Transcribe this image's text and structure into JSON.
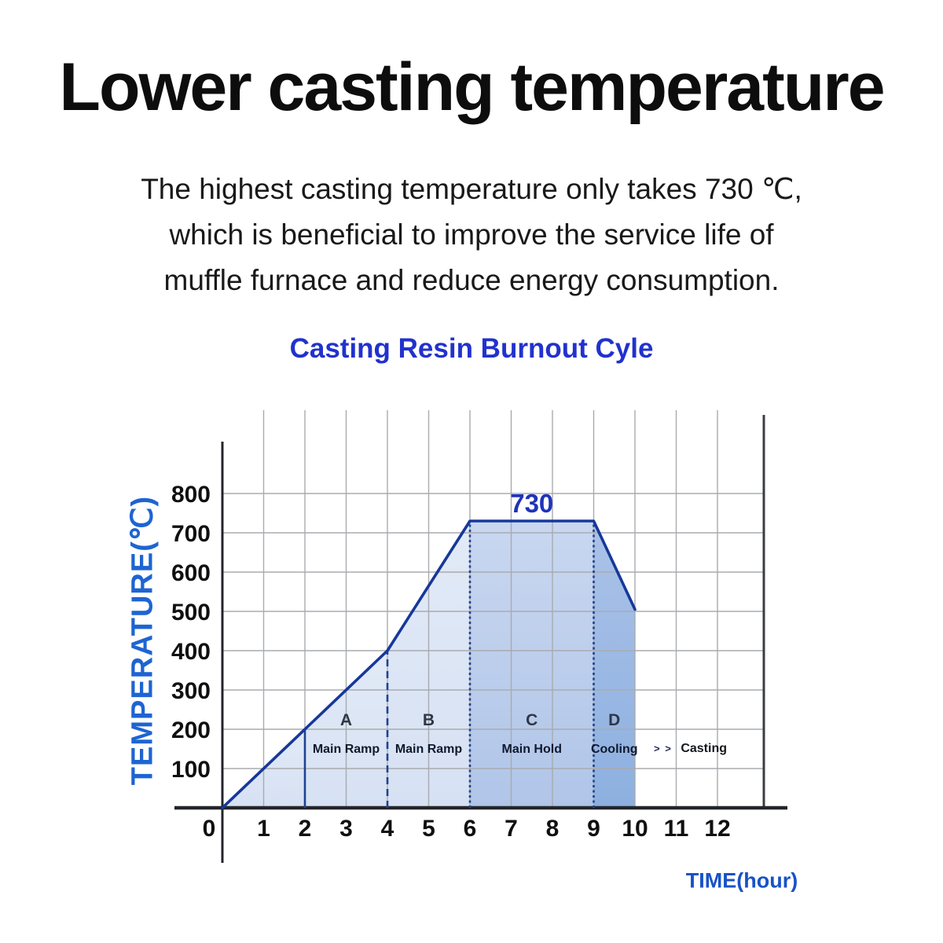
{
  "page": {
    "heading": "Lower casting temperature",
    "paragraph_lines": [
      "The highest casting temperature only takes 730 ℃,",
      "which is beneficial to improve the service life of",
      "muffle furnace and reduce energy consumption."
    ]
  },
  "chart_data": {
    "type": "area",
    "title": "Casting Resin Burnout Cyle",
    "xlabel": "TIME(hour)",
    "ylabel": "TEMPERATURE(℃)",
    "x_ticks": [
      0,
      1,
      2,
      3,
      4,
      5,
      6,
      7,
      8,
      9,
      10,
      11,
      12
    ],
    "y_ticks": [
      100,
      200,
      300,
      400,
      500,
      600,
      700,
      800
    ],
    "xlim": [
      0,
      13
    ],
    "ylim": [
      0,
      1030
    ],
    "grid": true,
    "profile_points": [
      [
        0,
        0
      ],
      [
        2,
        200
      ],
      [
        4,
        400
      ],
      [
        6,
        730
      ],
      [
        9,
        730
      ],
      [
        10,
        505
      ]
    ],
    "peak_label": {
      "text": "730",
      "x": 7.5,
      "y": 730
    },
    "segments": [
      {
        "id": "pre",
        "from": 0,
        "to": 2,
        "label": "",
        "sublabel": "",
        "fill_top": "#e2eaf7",
        "fill_bottom": "#d6e1f3"
      },
      {
        "id": "A",
        "from": 2,
        "to": 4,
        "label": "A",
        "sublabel": "Main Ramp",
        "fill_top": "#e2eaf7",
        "fill_bottom": "#d6e1f3"
      },
      {
        "id": "B",
        "from": 4,
        "to": 6,
        "label": "B",
        "sublabel": "Main Ramp",
        "fill_top": "#e2eaf7",
        "fill_bottom": "#d6e1f3"
      },
      {
        "id": "C",
        "from": 6,
        "to": 9,
        "label": "C",
        "sublabel": "Main Hold",
        "fill_top": "#c9d7f0",
        "fill_bottom": "#b0c5e8"
      },
      {
        "id": "D",
        "from": 9,
        "to": 10,
        "label": "D",
        "sublabel": "Cooling",
        "fill_top": "#abc2e8",
        "fill_bottom": "#8db0e0"
      }
    ],
    "dividers": [
      {
        "x": 2,
        "to_temp": 200,
        "style": "solid"
      },
      {
        "x": 4,
        "to_temp": 400,
        "style": "dashed"
      },
      {
        "x": 6,
        "to_temp": 730,
        "style": "dotted"
      },
      {
        "x": 9,
        "to_temp": 730,
        "style": "dotted"
      }
    ],
    "flow_annotations": [
      {
        "text": "> >",
        "x": 10.68
      },
      {
        "text": "Casting",
        "x": 11.67
      }
    ],
    "colors": {
      "curve": "#16389a",
      "divider": "#1d4390",
      "grid": "#a8abaf",
      "axis": "#23252a",
      "tick_label": "#101010",
      "peak_label": "#1f33bb",
      "segment_letter": "#2e3744",
      "segment_sublabel": "#10192e",
      "title_blue": "#2132cd",
      "axis_title_blue": "#1e64d2"
    }
  }
}
